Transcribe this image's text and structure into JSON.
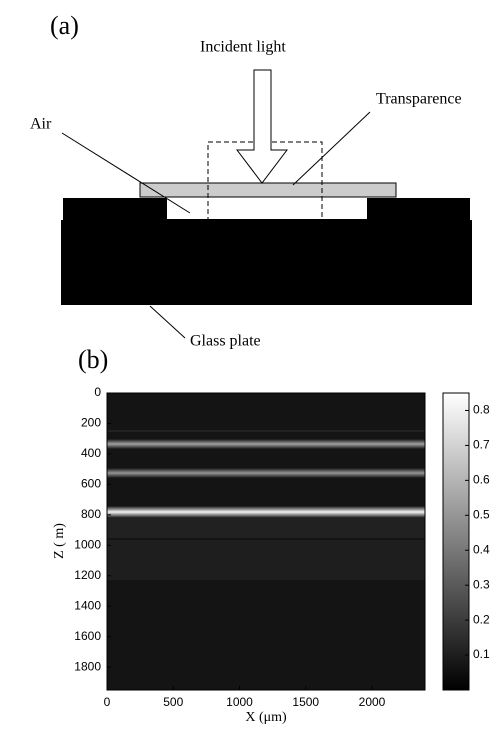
{
  "panel_a": {
    "label": "(a)",
    "incident_light": "Incident light",
    "transparence": "Transparence",
    "air": "Air",
    "glass_plate": "Glass plate"
  },
  "panel_b": {
    "label": "(b)",
    "x_label": "X (μm)",
    "y_label": "Z ( m)",
    "xlim": [
      0,
      2400
    ],
    "xticks": [
      0,
      500,
      1000,
      1500,
      2000
    ],
    "ylim": [
      0,
      1950
    ],
    "yticks": [
      0,
      200,
      400,
      600,
      800,
      1000,
      1200,
      1400,
      1600,
      1800
    ],
    "colorbar": {
      "lim": [
        0,
        0.85
      ],
      "ticks": [
        0.1,
        0.2,
        0.3,
        0.4,
        0.5,
        0.6,
        0.7,
        0.8
      ]
    }
  }
}
